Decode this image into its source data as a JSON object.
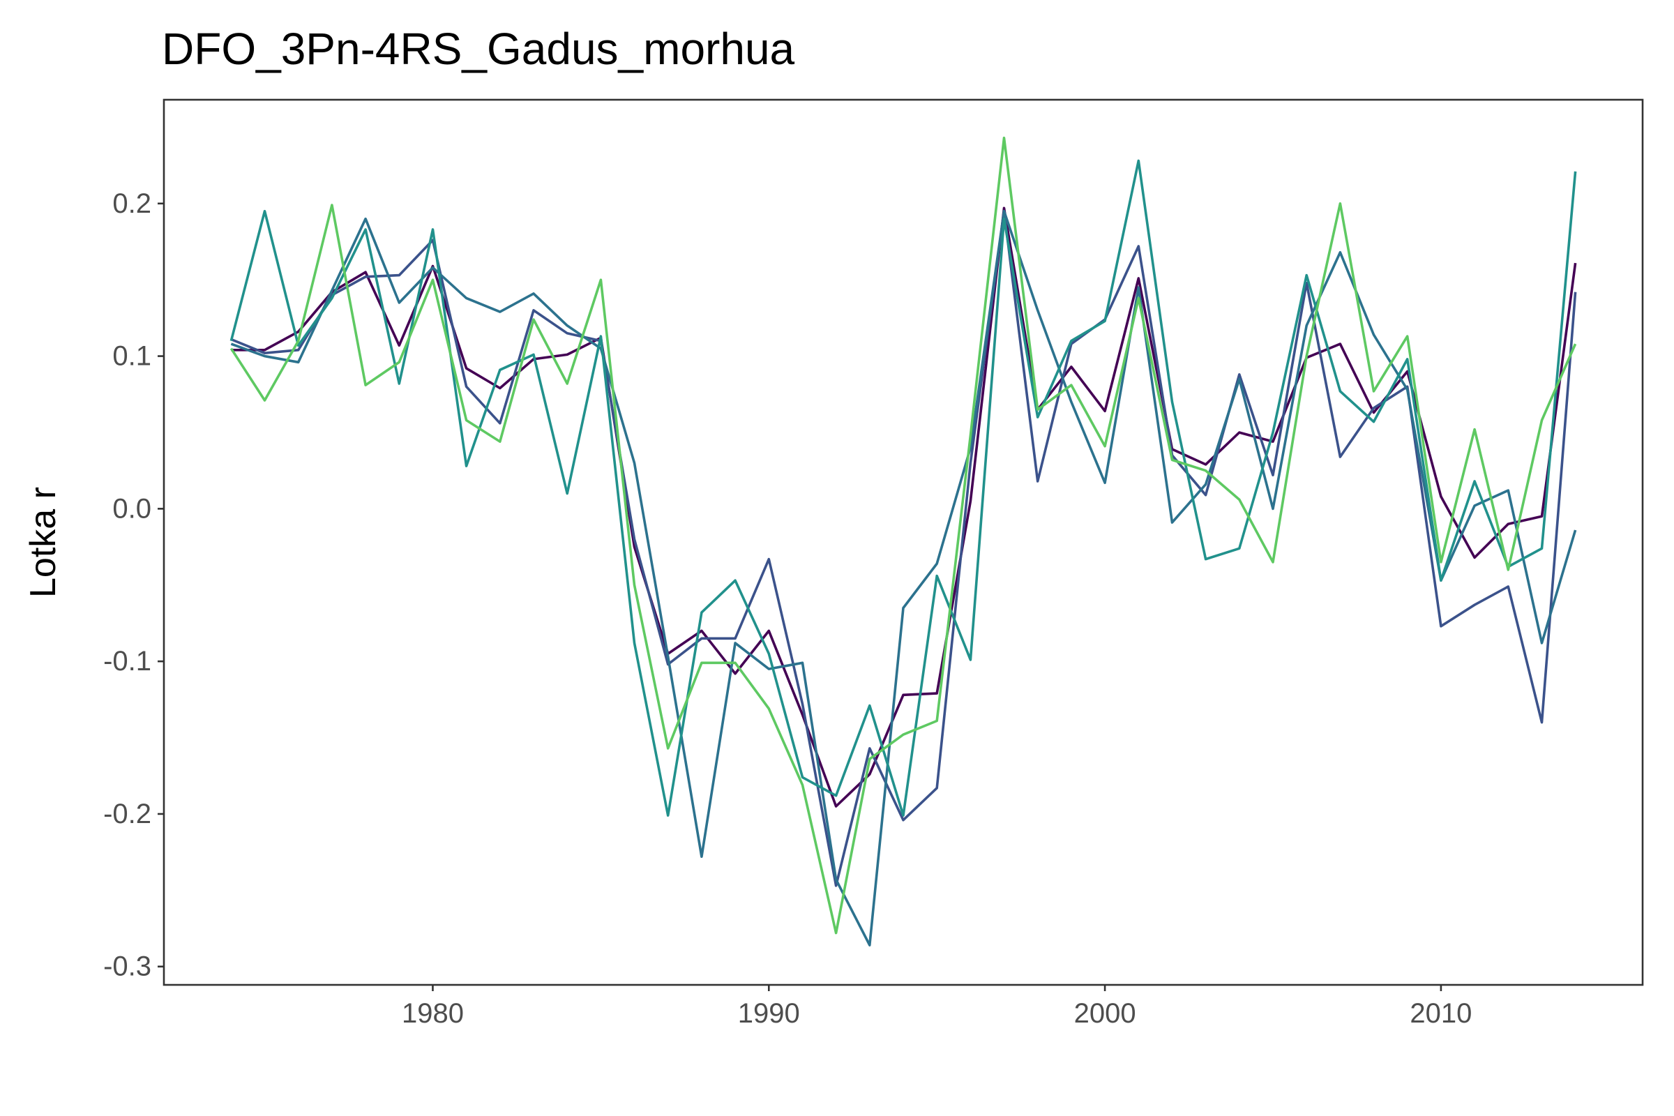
{
  "chart_data": {
    "type": "line",
    "title": "DFO_3Pn-4RS_Gadus_morhua",
    "xlabel": "",
    "ylabel": "Lotka r",
    "xlim": [
      1972,
      2016
    ],
    "ylim": [
      -0.312,
      0.268
    ],
    "x_ticks": [
      1980,
      1990,
      2000,
      2010
    ],
    "y_ticks": [
      -0.3,
      -0.2,
      -0.1,
      0.0,
      0.1,
      0.2
    ],
    "y_tick_labels": [
      "-0.3",
      "-0.2",
      "-0.1",
      "0.0",
      "0.1",
      "0.2"
    ],
    "grid": false,
    "legend": "none",
    "x": [
      1974,
      1975,
      1976,
      1977,
      1978,
      1979,
      1980,
      1981,
      1982,
      1983,
      1984,
      1985,
      1986,
      1987,
      1988,
      1989,
      1990,
      1991,
      1992,
      1993,
      1994,
      1995,
      1996,
      1997,
      1998,
      1999,
      2000,
      2001,
      2002,
      2003,
      2004,
      2005,
      2006,
      2007,
      2008,
      2009,
      2010,
      2011,
      2012,
      2013,
      2014
    ],
    "series": [
      {
        "color": "#440154",
        "values": [
          0.104,
          0.104,
          0.116,
          0.142,
          0.155,
          0.107,
          0.159,
          0.092,
          0.079,
          0.098,
          0.101,
          0.112,
          -0.025,
          -0.095,
          -0.08,
          -0.108,
          -0.08,
          -0.135,
          -0.195,
          -0.174,
          -0.122,
          -0.121,
          0.005,
          0.197,
          0.065,
          0.093,
          0.064,
          0.151,
          0.039,
          0.029,
          0.05,
          0.044,
          0.099,
          0.108,
          0.063,
          0.09,
          0.008,
          -0.032,
          -0.01,
          -0.005,
          0.161
        ]
      },
      {
        "color": "#3b528b",
        "values": [
          0.111,
          0.102,
          0.104,
          0.14,
          0.152,
          0.153,
          0.176,
          0.08,
          0.056,
          0.13,
          0.115,
          0.11,
          -0.02,
          -0.102,
          -0.085,
          -0.085,
          -0.033,
          -0.128,
          -0.247,
          -0.157,
          -0.204,
          -0.183,
          0.03,
          0.195,
          0.018,
          0.108,
          0.124,
          0.172,
          0.035,
          0.009,
          0.088,
          0.022,
          0.148,
          0.034,
          0.066,
          0.08,
          -0.077,
          -0.063,
          -0.051,
          -0.14,
          0.142
        ]
      },
      {
        "color": "#2c728e",
        "values": [
          0.108,
          0.1,
          0.096,
          0.143,
          0.19,
          0.135,
          0.158,
          0.138,
          0.129,
          0.141,
          0.12,
          0.105,
          0.03,
          -0.097,
          -0.228,
          -0.088,
          -0.105,
          -0.101,
          -0.243,
          -0.286,
          -0.065,
          -0.036,
          0.04,
          0.195,
          0.13,
          0.07,
          0.017,
          0.145,
          -0.009,
          0.016,
          0.085,
          0.0,
          0.12,
          0.168,
          0.114,
          0.078,
          -0.047,
          0.002,
          0.012,
          -0.088,
          -0.014
        ]
      },
      {
        "color": "#21918c",
        "values": [
          0.11,
          0.195,
          0.107,
          0.138,
          0.183,
          0.082,
          0.183,
          0.028,
          0.091,
          0.101,
          0.01,
          0.113,
          -0.088,
          -0.201,
          -0.068,
          -0.047,
          -0.095,
          -0.176,
          -0.188,
          -0.129,
          -0.201,
          -0.044,
          -0.099,
          0.19,
          0.06,
          0.11,
          0.123,
          0.228,
          0.07,
          -0.033,
          -0.026,
          0.05,
          0.153,
          0.077,
          0.057,
          0.098,
          -0.047,
          0.018,
          -0.038,
          -0.026,
          0.221
        ]
      },
      {
        "color": "#5ec962",
        "values": [
          0.105,
          0.071,
          0.11,
          0.199,
          0.081,
          0.096,
          0.15,
          0.058,
          0.044,
          0.124,
          0.082,
          0.15,
          -0.05,
          -0.157,
          -0.101,
          -0.101,
          -0.131,
          -0.181,
          -0.278,
          -0.164,
          -0.148,
          -0.139,
          0.048,
          0.243,
          0.065,
          0.081,
          0.041,
          0.138,
          0.032,
          0.025,
          0.006,
          -0.035,
          0.1,
          0.2,
          0.077,
          0.113,
          -0.035,
          0.052,
          -0.04,
          0.058,
          0.108
        ]
      }
    ]
  }
}
